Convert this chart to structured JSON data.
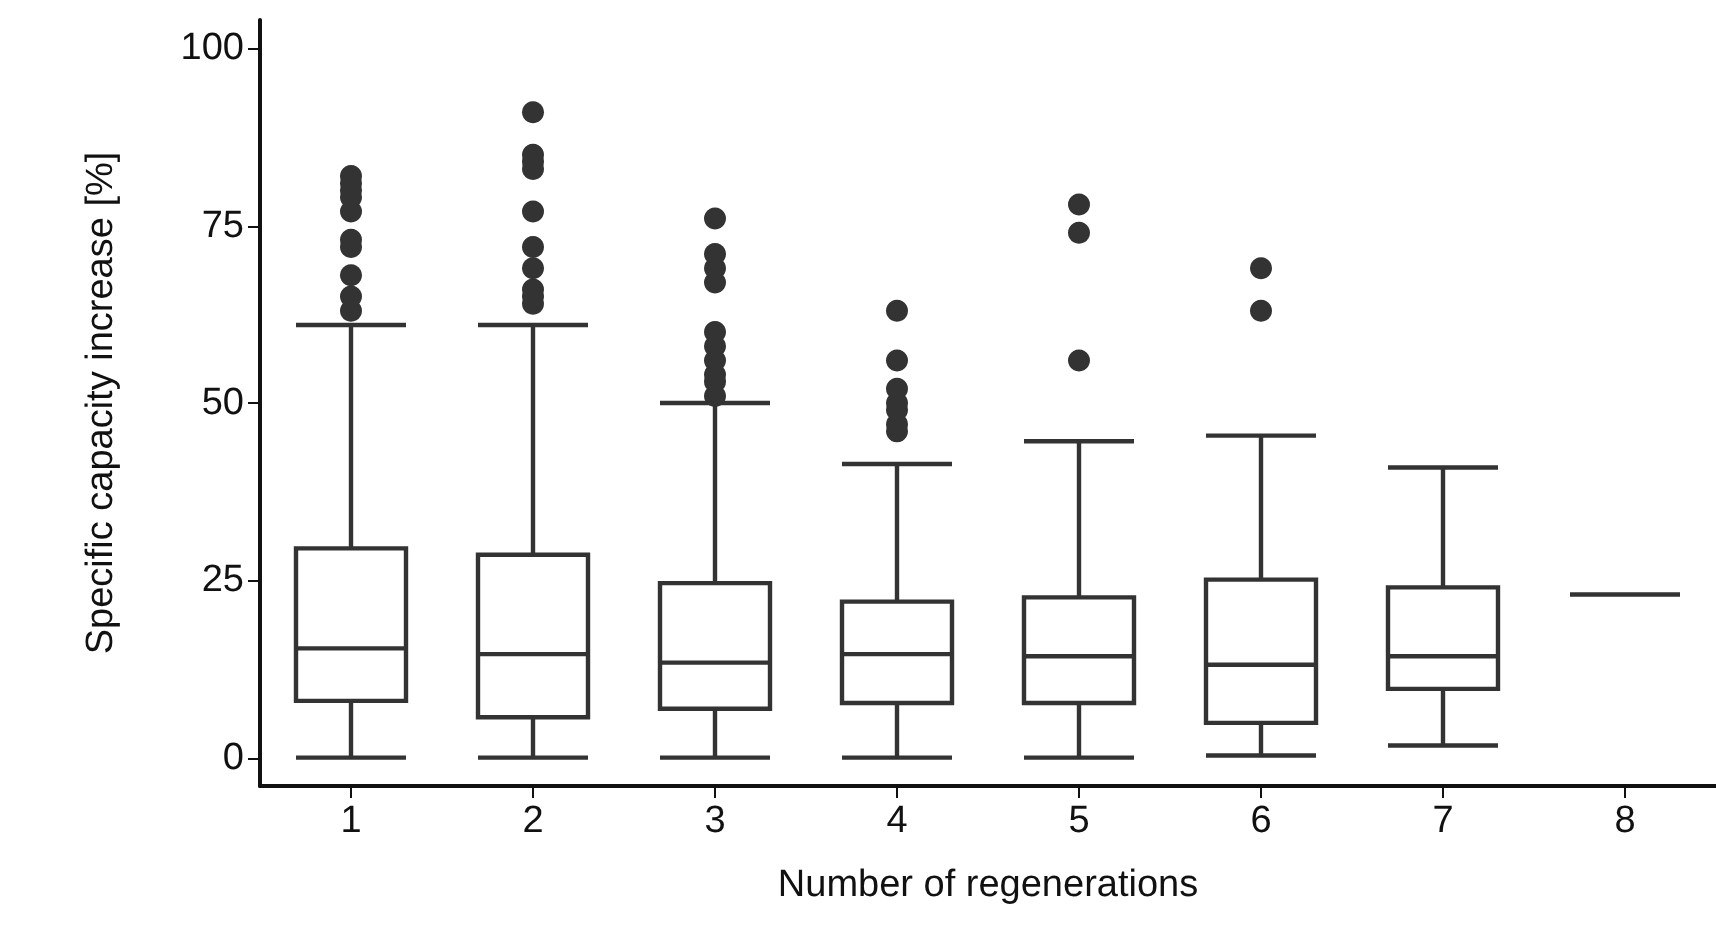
{
  "chart_data": {
    "type": "box",
    "xlabel": "Number of regenerations",
    "ylabel": "Specific capacity increase [%]",
    "categories": [
      "1",
      "2",
      "3",
      "4",
      "5",
      "6",
      "7",
      "8"
    ],
    "color": "#333333",
    "ylim": [
      -4,
      104
    ],
    "yticks": [
      0,
      25,
      50,
      75,
      100
    ],
    "boxes": [
      {
        "low": 0,
        "q1": 8,
        "median": 15.4,
        "q3": 29.5,
        "high": 61,
        "outliers": [
          63,
          65,
          68,
          72,
          73,
          77,
          79,
          80,
          81,
          82
        ]
      },
      {
        "low": 0,
        "q1": 5.7,
        "median": 14.6,
        "q3": 28.6,
        "high": 61,
        "outliers": [
          64,
          65,
          66,
          69,
          72,
          77,
          83,
          84,
          85,
          91
        ]
      },
      {
        "low": 0,
        "q1": 6.9,
        "median": 13.4,
        "q3": 24.6,
        "high": 50,
        "outliers": [
          51,
          53,
          54,
          56,
          58,
          60,
          67,
          69,
          71,
          76
        ]
      },
      {
        "low": 0,
        "q1": 7.7,
        "median": 14.6,
        "q3": 22,
        "high": 41.4,
        "outliers": [
          46,
          47,
          49,
          50,
          52,
          56,
          63
        ]
      },
      {
        "low": 0,
        "q1": 7.7,
        "median": 14.3,
        "q3": 22.6,
        "high": 44.6,
        "outliers": [
          56,
          74,
          78
        ]
      },
      {
        "low": 0.3,
        "q1": 4.9,
        "median": 13.1,
        "q3": 25.1,
        "high": 45.4,
        "outliers": [
          63,
          69
        ]
      },
      {
        "low": 1.7,
        "q1": 9.7,
        "median": 14.3,
        "q3": 24,
        "high": 40.9
      },
      {
        "low": 23,
        "q1": 23,
        "median": 23,
        "q3": 23,
        "high": 23
      }
    ]
  }
}
